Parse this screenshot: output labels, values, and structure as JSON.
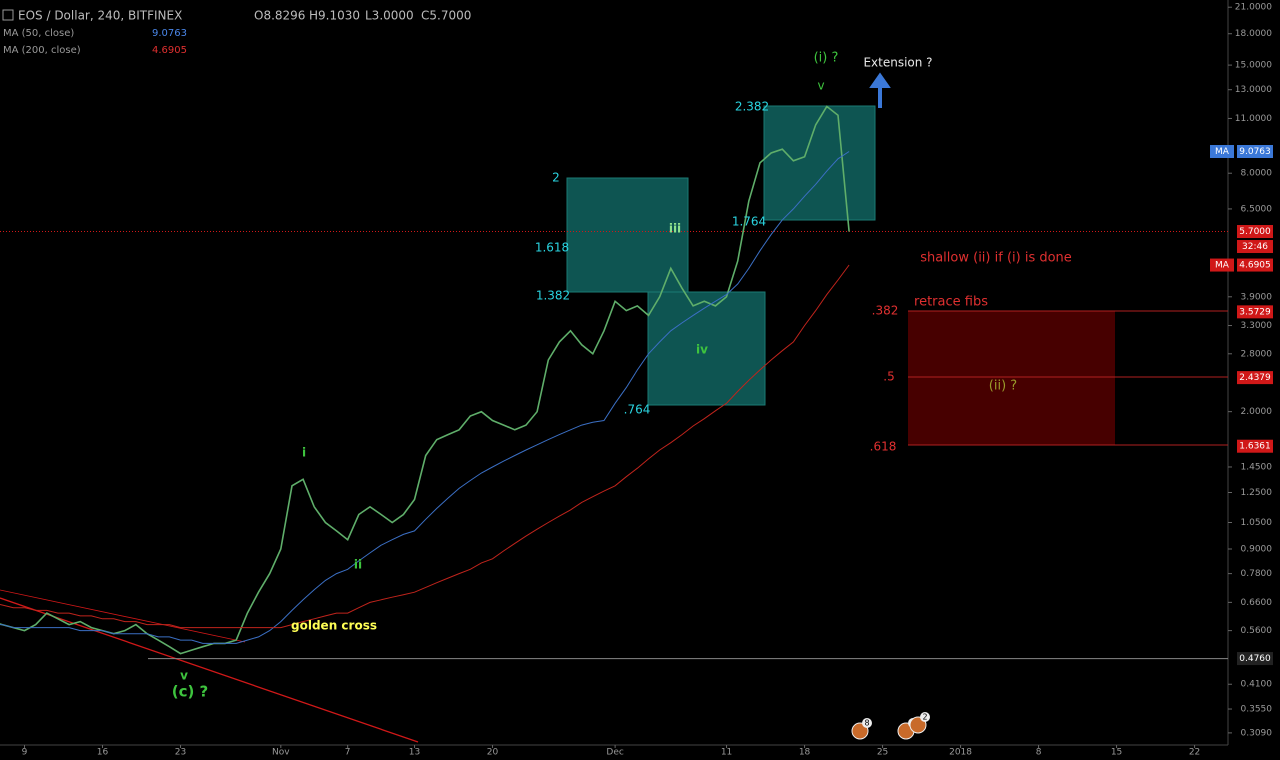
{
  "header": {
    "symbol": "EOS / Dollar, 240, BITFINEX",
    "open": "O8.8296",
    "high": "H9.1030",
    "low": "L3.0000",
    "close": "C5.7000",
    "ma50": {
      "label": "MA (50, close)",
      "value": "9.0763"
    },
    "ma200": {
      "label": "MA (200, close)",
      "value": "4.6905"
    }
  },
  "chart_data": {
    "type": "line",
    "log_scale": true,
    "x": [
      5,
      6,
      7,
      8,
      9,
      10,
      11,
      12,
      13,
      14,
      15,
      16,
      17,
      18,
      19,
      20,
      21,
      22,
      23,
      24,
      25,
      26,
      27,
      28,
      29,
      30,
      31,
      32,
      33,
      34,
      35,
      36,
      37,
      38,
      39,
      40,
      41,
      42,
      43,
      44,
      45,
      46,
      47,
      48,
      49,
      50,
      51,
      52,
      53,
      54,
      55,
      56,
      57,
      58,
      59,
      60,
      61,
      62,
      63,
      64,
      65,
      66,
      67,
      68,
      69,
      70,
      71,
      72,
      73,
      74,
      75,
      76,
      77,
      78,
      79,
      80,
      81,
      82
    ],
    "series": [
      {
        "name": "EOS / Dollar",
        "color": "#5fae6a",
        "values": [
          0.59,
          0.58,
          0.57,
          0.56,
          0.58,
          0.62,
          0.6,
          0.58,
          0.59,
          0.57,
          0.56,
          0.55,
          0.56,
          0.58,
          0.55,
          0.53,
          0.51,
          0.49,
          0.5,
          0.51,
          0.52,
          0.52,
          0.53,
          0.62,
          0.7,
          0.78,
          0.9,
          1.3,
          1.35,
          1.15,
          1.05,
          1.0,
          0.95,
          1.1,
          1.15,
          1.1,
          1.05,
          1.1,
          1.2,
          1.55,
          1.7,
          1.75,
          1.8,
          1.95,
          2.0,
          1.9,
          1.85,
          1.8,
          1.85,
          2.0,
          2.7,
          3.0,
          3.2,
          2.95,
          2.8,
          3.2,
          3.8,
          3.6,
          3.7,
          3.5,
          3.9,
          4.6,
          4.1,
          3.7,
          3.8,
          3.7,
          3.9,
          4.8,
          6.8,
          8.5,
          9.0,
          9.2,
          8.6,
          8.8,
          10.6,
          11.8,
          11.2,
          5.7
        ]
      },
      {
        "name": "MA (50, close)",
        "color": "#3b6fc4",
        "values": [
          0.58,
          0.58,
          0.57,
          0.57,
          0.57,
          0.57,
          0.57,
          0.57,
          0.56,
          0.56,
          0.56,
          0.55,
          0.55,
          0.55,
          0.55,
          0.54,
          0.54,
          0.53,
          0.53,
          0.52,
          0.52,
          0.52,
          0.52,
          0.53,
          0.54,
          0.56,
          0.59,
          0.63,
          0.67,
          0.71,
          0.75,
          0.78,
          0.8,
          0.84,
          0.88,
          0.92,
          0.95,
          0.98,
          1.0,
          1.07,
          1.14,
          1.21,
          1.28,
          1.34,
          1.4,
          1.45,
          1.5,
          1.55,
          1.6,
          1.65,
          1.7,
          1.75,
          1.8,
          1.85,
          1.88,
          1.9,
          2.1,
          2.3,
          2.55,
          2.8,
          3.0,
          3.2,
          3.35,
          3.5,
          3.65,
          3.8,
          3.95,
          4.2,
          4.6,
          5.1,
          5.6,
          6.1,
          6.5,
          7.0,
          7.5,
          8.1,
          8.7,
          9.0763
        ]
      },
      {
        "name": "MA (200, close)",
        "color": "#c0241c",
        "values": [
          0.66,
          0.65,
          0.64,
          0.64,
          0.63,
          0.63,
          0.62,
          0.62,
          0.61,
          0.61,
          0.6,
          0.6,
          0.59,
          0.59,
          0.58,
          0.58,
          0.58,
          0.57,
          0.57,
          0.57,
          0.57,
          0.57,
          0.57,
          0.57,
          0.57,
          0.57,
          0.57,
          0.58,
          0.59,
          0.6,
          0.61,
          0.62,
          0.62,
          0.64,
          0.66,
          0.67,
          0.68,
          0.69,
          0.7,
          0.72,
          0.74,
          0.76,
          0.78,
          0.8,
          0.83,
          0.85,
          0.89,
          0.93,
          0.97,
          1.01,
          1.05,
          1.09,
          1.13,
          1.18,
          1.22,
          1.26,
          1.3,
          1.37,
          1.44,
          1.52,
          1.6,
          1.67,
          1.75,
          1.84,
          1.92,
          2.01,
          2.1,
          2.25,
          2.4,
          2.55,
          2.7,
          2.85,
          3.0,
          3.3,
          3.6,
          3.95,
          4.3,
          4.6905
        ]
      }
    ],
    "xlim": [
      5.8,
      116
    ],
    "ylim": [
      0.288,
      21.9
    ],
    "xticks": [
      {
        "value": 8,
        "label": "9"
      },
      {
        "value": 15,
        "label": "16"
      },
      {
        "value": 22,
        "label": "23"
      },
      {
        "value": 31,
        "label": "Nov"
      },
      {
        "value": 37,
        "label": "7"
      },
      {
        "value": 43,
        "label": "13"
      },
      {
        "value": 50,
        "label": "20"
      },
      {
        "value": 61,
        "label": "Dec"
      },
      {
        "value": 71,
        "label": "11"
      },
      {
        "value": 78,
        "label": "18"
      },
      {
        "value": 85,
        "label": "25"
      },
      {
        "value": 92,
        "label": "2018"
      },
      {
        "value": 99,
        "label": "8"
      },
      {
        "value": 106,
        "label": "15"
      },
      {
        "value": 113,
        "label": "22"
      }
    ],
    "yticks": [
      {
        "value": 21,
        "label": "21.0000"
      },
      {
        "value": 18,
        "label": "18.0000"
      },
      {
        "value": 15,
        "label": "15.0000"
      },
      {
        "value": 13,
        "label": "13.0000"
      },
      {
        "value": 11,
        "label": "11.0000"
      },
      {
        "value": 8,
        "label": "8.0000"
      },
      {
        "value": 6.5,
        "label": "6.5000"
      },
      {
        "value": 3.9,
        "label": "3.9000"
      },
      {
        "value": 3.3,
        "label": "3.3000"
      },
      {
        "value": 2.8,
        "label": "2.8000"
      },
      {
        "value": 2,
        "label": "2.0000"
      },
      {
        "value": 1.45,
        "label": "1.4500"
      },
      {
        "value": 1.25,
        "label": "1.2500"
      },
      {
        "value": 1.05,
        "label": "1.0500"
      },
      {
        "value": 0.9,
        "label": "0.9000"
      },
      {
        "value": 0.78,
        "label": "0.7800"
      },
      {
        "value": 0.66,
        "label": "0.6600"
      },
      {
        "value": 0.56,
        "label": "0.5600"
      },
      {
        "value": 0.41,
        "label": "0.4100"
      },
      {
        "value": 0.355,
        "label": "0.3550"
      },
      {
        "value": 0.309,
        "label": "0.3090"
      }
    ],
    "price_markers": [
      {
        "tag": "MA",
        "value": 9.0763,
        "label": "9.0763",
        "color": "#3b78d8"
      },
      {
        "value": 5.7,
        "label": "5.7000",
        "color": "#d01818"
      },
      {
        "tag": "MA",
        "value": 4.6905,
        "label": "4.6905",
        "color": "#d01818"
      },
      {
        "value": 3.5729,
        "label": "3.5729",
        "color": "#d01818"
      },
      {
        "value": 2.4379,
        "label": "2.4379",
        "color": "#d01818"
      },
      {
        "value": 1.6361,
        "label": "1.6361",
        "color": "#d01818"
      },
      {
        "value": 0.476,
        "label": "0.4760",
        "color": "#222"
      }
    ],
    "countdown": "32:46",
    "annotations": [
      {
        "text": "(i) ?",
        "color": "#3ec43e"
      },
      {
        "text": "v",
        "color": "#3ec43e"
      },
      {
        "text": "Extension ?",
        "color": "#e8e8e8"
      },
      {
        "text": "2.382",
        "color": "#2ad4e0"
      },
      {
        "text": "2",
        "color": "#2ad4e0"
      },
      {
        "text": "1.618",
        "color": "#2ad4e0"
      },
      {
        "text": "1.382",
        "color": "#2ad4e0"
      },
      {
        "text": "iii",
        "color": "#8ee28e"
      },
      {
        "text": "1.764",
        "color": "#2ad4e0"
      },
      {
        "text": "iv",
        "color": "#3ec43e"
      },
      {
        "text": ".764",
        "color": "#2ad4e0"
      },
      {
        "text": "i",
        "color": "#3ec43e"
      },
      {
        "text": "ii",
        "color": "#3ec43e"
      },
      {
        "text": "golden cross",
        "color": "#ffff55"
      },
      {
        "text": "v",
        "color": "#3ec43e"
      },
      {
        "text": "(c) ?",
        "color": "#3ec43e"
      },
      {
        "text": "shallow (ii) if (i) is done",
        "color": "#e03030"
      },
      {
        "text": "retrace fibs",
        "color": "#e03030"
      },
      {
        "text": ".382",
        "color": "#e03030"
      },
      {
        "text": ".5",
        "color": "#e03030"
      },
      {
        "text": ".618",
        "color": "#e03030"
      },
      {
        "text": "(ii) ?",
        "color": "#9a9a2a"
      }
    ],
    "events": [
      8,
      4,
      2
    ]
  }
}
